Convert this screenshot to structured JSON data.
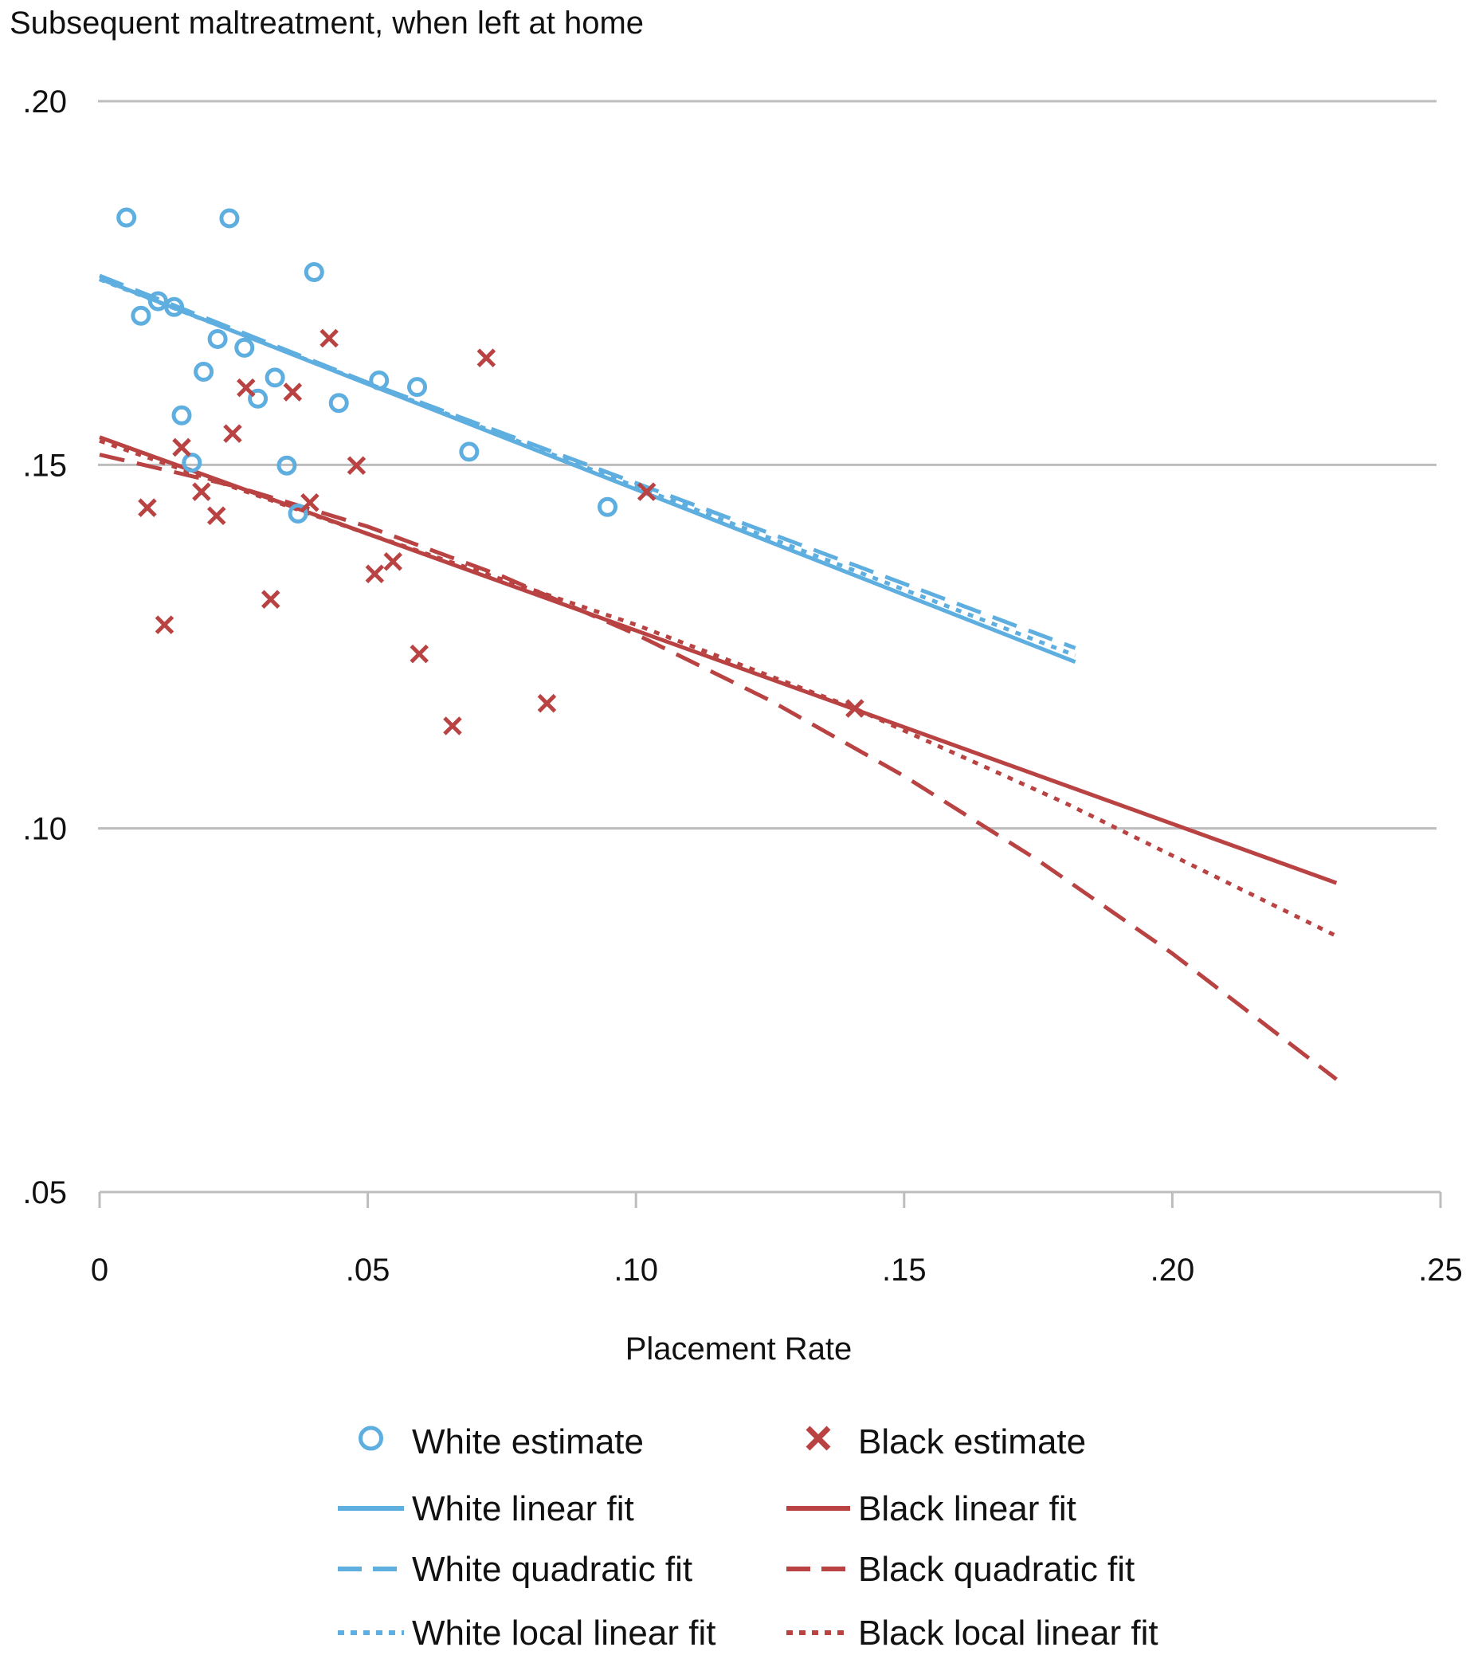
{
  "chart_data": {
    "type": "scatter",
    "title": "Subsequent maltreatment, when left at home",
    "xlabel": "Placement Rate",
    "ylabel": "",
    "xlim": [
      0,
      0.25
    ],
    "ylim": [
      0.05,
      0.2
    ],
    "x_ticks": [
      "0",
      ".05",
      ".10",
      ".15",
      ".20",
      ".25"
    ],
    "x_tick_values": [
      0,
      0.05,
      0.1,
      0.15,
      0.2,
      0.25
    ],
    "y_ticks": [
      ".05",
      ".10",
      ".15",
      ".20"
    ],
    "y_tick_values": [
      0.05,
      0.1,
      0.15,
      0.2
    ],
    "grid": "horizontal",
    "legend_placement": "bottom",
    "colors": {
      "white": "#5eaee0",
      "black": "#b94343"
    },
    "series": [
      {
        "name": "White estimate",
        "kind": "points",
        "marker": "circle",
        "color": "#5eaee0",
        "points": [
          [
            0.005,
            0.184
          ],
          [
            0.0077,
            0.1705
          ],
          [
            0.0109,
            0.1725
          ],
          [
            0.0139,
            0.1717
          ],
          [
            0.0242,
            0.1839
          ],
          [
            0.04,
            0.1765
          ],
          [
            0.022,
            0.1673
          ],
          [
            0.027,
            0.1661
          ],
          [
            0.0194,
            0.1628
          ],
          [
            0.0153,
            0.1568
          ],
          [
            0.0327,
            0.162
          ],
          [
            0.0295,
            0.1591
          ],
          [
            0.0446,
            0.1585
          ],
          [
            0.0521,
            0.1616
          ],
          [
            0.0592,
            0.1607
          ],
          [
            0.0172,
            0.1503
          ],
          [
            0.0349,
            0.1499
          ],
          [
            0.037,
            0.1433
          ],
          [
            0.0689,
            0.1518
          ],
          [
            0.0947,
            0.1442
          ]
        ]
      },
      {
        "name": "Black estimate",
        "kind": "points",
        "marker": "x",
        "color": "#b94343",
        "points": [
          [
            0.0089,
            0.1441
          ],
          [
            0.0121,
            0.128
          ],
          [
            0.0153,
            0.1524
          ],
          [
            0.019,
            0.1463
          ],
          [
            0.0218,
            0.143
          ],
          [
            0.0248,
            0.1543
          ],
          [
            0.0273,
            0.1606
          ],
          [
            0.0319,
            0.1315
          ],
          [
            0.036,
            0.16
          ],
          [
            0.0392,
            0.1448
          ],
          [
            0.0428,
            0.1674
          ],
          [
            0.0479,
            0.1499
          ],
          [
            0.0513,
            0.135
          ],
          [
            0.0547,
            0.1367
          ],
          [
            0.0596,
            0.124
          ],
          [
            0.0658,
            0.1141
          ],
          [
            0.0721,
            0.1647
          ],
          [
            0.0834,
            0.1172
          ],
          [
            0.102,
            0.1463
          ],
          [
            0.1408,
            0.1165
          ]
        ]
      },
      {
        "name": "White linear fit",
        "kind": "line",
        "style": "solid",
        "color": "#5eaee0",
        "points": [
          [
            0,
            0.1756
          ],
          [
            0.1819,
            0.1229
          ]
        ]
      },
      {
        "name": "White quadratic fit",
        "kind": "line",
        "style": "dashed",
        "color": "#5eaee0",
        "points": [
          [
            0,
            0.176
          ],
          [
            0.05,
            0.1613
          ],
          [
            0.1,
            0.1475
          ],
          [
            0.1819,
            0.1248
          ]
        ]
      },
      {
        "name": "White local linear fit",
        "kind": "line",
        "style": "dotted",
        "color": "#5eaee0",
        "points": [
          [
            0,
            0.1755
          ],
          [
            0.05,
            0.1612
          ],
          [
            0.1,
            0.147
          ],
          [
            0.1819,
            0.1238
          ]
        ]
      },
      {
        "name": "Black linear fit",
        "kind": "line",
        "style": "solid",
        "color": "#b94343",
        "points": [
          [
            0,
            0.1538
          ],
          [
            0.2306,
            0.0925
          ]
        ]
      },
      {
        "name": "Black quadratic fit",
        "kind": "line",
        "style": "dashed",
        "color": "#b94343",
        "points": [
          [
            0,
            0.1514
          ],
          [
            0.025,
            0.1471
          ],
          [
            0.05,
            0.1415
          ],
          [
            0.075,
            0.1347
          ],
          [
            0.1,
            0.1267
          ],
          [
            0.125,
            0.1176
          ],
          [
            0.15,
            0.1072
          ],
          [
            0.175,
            0.0956
          ],
          [
            0.2,
            0.0828
          ],
          [
            0.2306,
            0.0655
          ]
        ]
      },
      {
        "name": "Black local linear fit",
        "kind": "line",
        "style": "dotted",
        "color": "#b94343",
        "points": [
          [
            0,
            0.1533
          ],
          [
            0.05,
            0.1405
          ],
          [
            0.1,
            0.128
          ],
          [
            0.1408,
            0.1165
          ],
          [
            0.18,
            0.1035
          ],
          [
            0.2306,
            0.0852
          ]
        ]
      }
    ]
  }
}
